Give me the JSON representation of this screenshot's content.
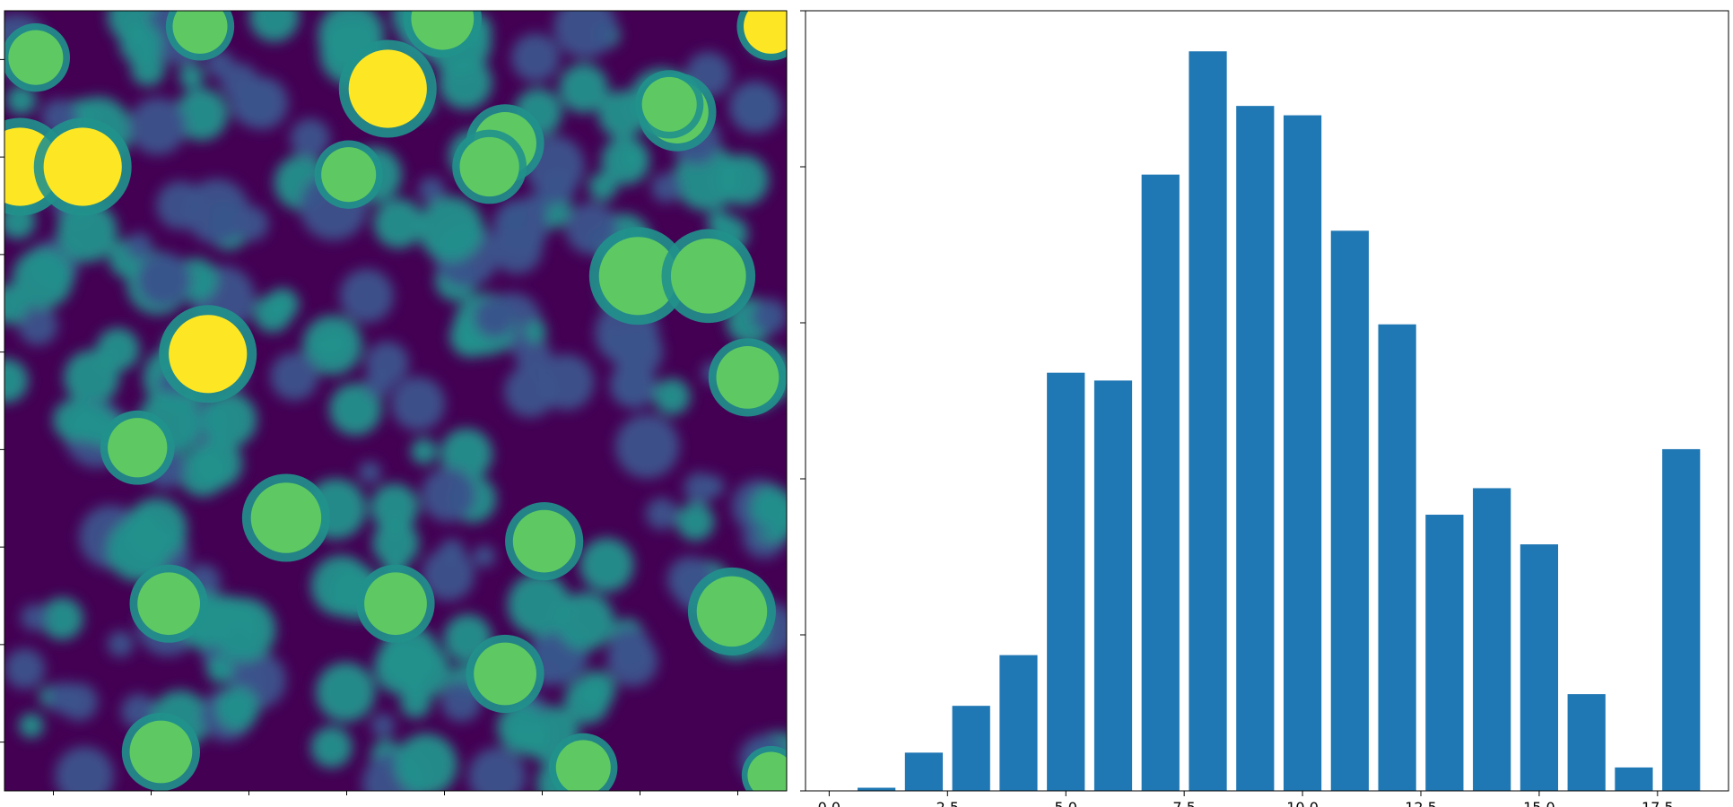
{
  "colors": {
    "bar": "#1f77b4",
    "viridis": [
      "#440154",
      "#3b528b",
      "#21918c",
      "#5ec962",
      "#fde725"
    ]
  },
  "image_panel": {
    "colormap": "viridis",
    "x_ticks_count": 8,
    "y_ticks_count": 8
  },
  "chart_data": {
    "type": "bar",
    "x": [
      1,
      2,
      3,
      4,
      5,
      6,
      7,
      8,
      9,
      10,
      11,
      12,
      13,
      14,
      15,
      16,
      17,
      18
    ],
    "values": [
      0.4,
      4.9,
      10.9,
      17.4,
      53.6,
      52.6,
      79.0,
      94.8,
      87.8,
      86.6,
      71.8,
      59.8,
      35.4,
      38.8,
      31.6,
      12.4,
      3.0,
      43.8
    ],
    "xlim": [
      -0.5,
      19.0
    ],
    "ylim": [
      0,
      100
    ],
    "xticks": [
      0.0,
      2.5,
      5.0,
      7.5,
      10.0,
      12.5,
      15.0,
      17.5
    ],
    "xtick_labels": [
      "0.0",
      "2.5",
      "5.0",
      "7.5",
      "10.0",
      "12.5",
      "15.0",
      "17.5"
    ],
    "bar_width": 0.8,
    "grid": false
  }
}
